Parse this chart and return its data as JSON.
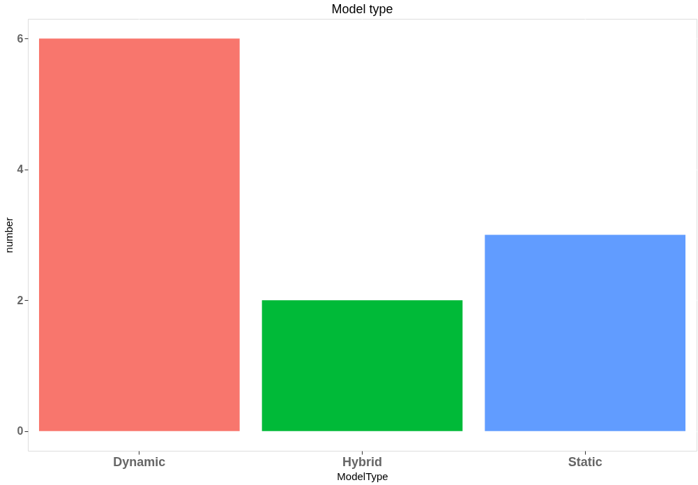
{
  "chart_data": {
    "type": "bar",
    "title": "Model type",
    "xlabel": "ModelType",
    "ylabel": "number",
    "categories": [
      "Dynamic",
      "Hybrid",
      "Static"
    ],
    "values": [
      6,
      2,
      3
    ],
    "colors": [
      "#f8766d",
      "#00ba38",
      "#619cff"
    ],
    "ylim": [
      -0.3,
      6.3
    ],
    "yticks": [
      0,
      2,
      4,
      6
    ],
    "grid": true,
    "legend": false
  }
}
